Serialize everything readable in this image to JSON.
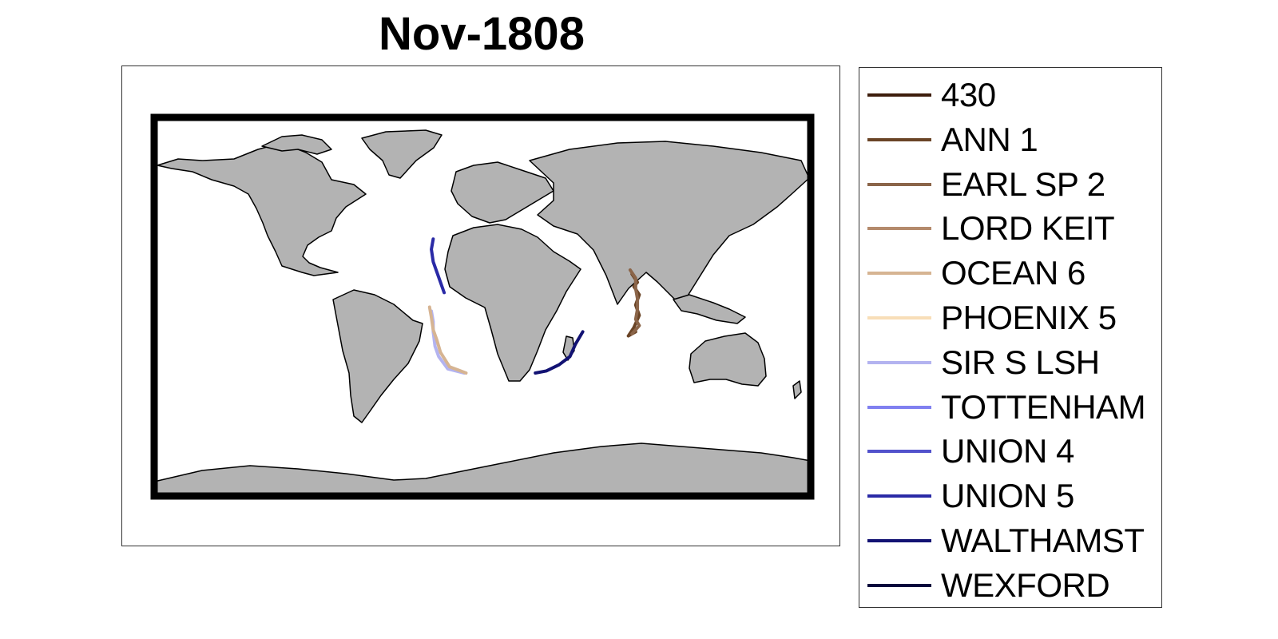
{
  "title": "Nov-1808",
  "map": {
    "land_color": "#b3b3b3",
    "ocean_color": "#ffffff",
    "frame_color": "#000000",
    "coast_color": "#000000"
  },
  "legend": {
    "items": [
      {
        "label": "430",
        "color": "#3d1d0c"
      },
      {
        "label": "ANN 1",
        "color": "#6a4426"
      },
      {
        "label": "EARL SP 2",
        "color": "#8b6549"
      },
      {
        "label": "LORD KEIT",
        "color": "#b48a6c"
      },
      {
        "label": "OCEAN 6",
        "color": "#d6b492"
      },
      {
        "label": "PHOENIX 5",
        "color": "#f8deb8"
      },
      {
        "label": "SIR S LSH",
        "color": "#b3b3f0"
      },
      {
        "label": "TOTTENHAM",
        "color": "#8080f0"
      },
      {
        "label": "UNION 4",
        "color": "#5252cc"
      },
      {
        "label": "UNION 5",
        "color": "#2a2aa6"
      },
      {
        "label": "WALTHAMST",
        "color": "#121273"
      },
      {
        "label": "WEXFORD",
        "color": "#06063c"
      }
    ]
  },
  "tracks": [
    {
      "ship": "UNION 5",
      "color": "#2a2aa6",
      "lonlat": [
        [
          -27,
          31
        ],
        [
          -28,
          26
        ],
        [
          -27,
          20
        ],
        [
          -25,
          15
        ],
        [
          -23,
          10
        ],
        [
          -21,
          5
        ]
      ]
    },
    {
      "ship": "WALTHAMST",
      "color": "#121273",
      "lonlat": [
        [
          29,
          -34
        ],
        [
          35,
          -33
        ],
        [
          42,
          -30
        ],
        [
          48,
          -26
        ],
        [
          51,
          -20
        ],
        [
          55,
          -14
        ]
      ]
    },
    {
      "ship": "SIR S LSH",
      "color": "#b3b3f0",
      "lonlat": [
        [
          -28,
          -4
        ],
        [
          -27,
          -9
        ],
        [
          -27,
          -14
        ],
        [
          -26,
          -21
        ],
        [
          -24,
          -26
        ],
        [
          -19,
          -32
        ],
        [
          -10,
          -34
        ]
      ]
    },
    {
      "ship": "OCEAN 6",
      "color": "#d6b492",
      "lonlat": [
        [
          -29,
          -2
        ],
        [
          -28,
          -7
        ],
        [
          -27,
          -13
        ],
        [
          -25,
          -18
        ],
        [
          -23,
          -24
        ],
        [
          -18,
          -31
        ],
        [
          -12,
          -33
        ],
        [
          -9,
          -34
        ]
      ]
    },
    {
      "ship": "ANN 1",
      "color": "#6a4426",
      "lonlat": [
        [
          82,
          14
        ],
        [
          85,
          10
        ],
        [
          83,
          8
        ],
        [
          86,
          4
        ],
        [
          84,
          -1
        ],
        [
          86,
          -6
        ],
        [
          83,
          -12
        ],
        [
          80,
          -16
        ],
        [
          84,
          -14
        ]
      ]
    },
    {
      "ship": "EARL SP 2",
      "color": "#8b6549",
      "lonlat": [
        [
          81,
          16
        ],
        [
          84,
          12
        ],
        [
          84,
          7
        ],
        [
          85,
          2
        ],
        [
          85,
          -3
        ],
        [
          84,
          -8
        ],
        [
          86,
          -11
        ],
        [
          82,
          -15
        ]
      ]
    }
  ]
}
